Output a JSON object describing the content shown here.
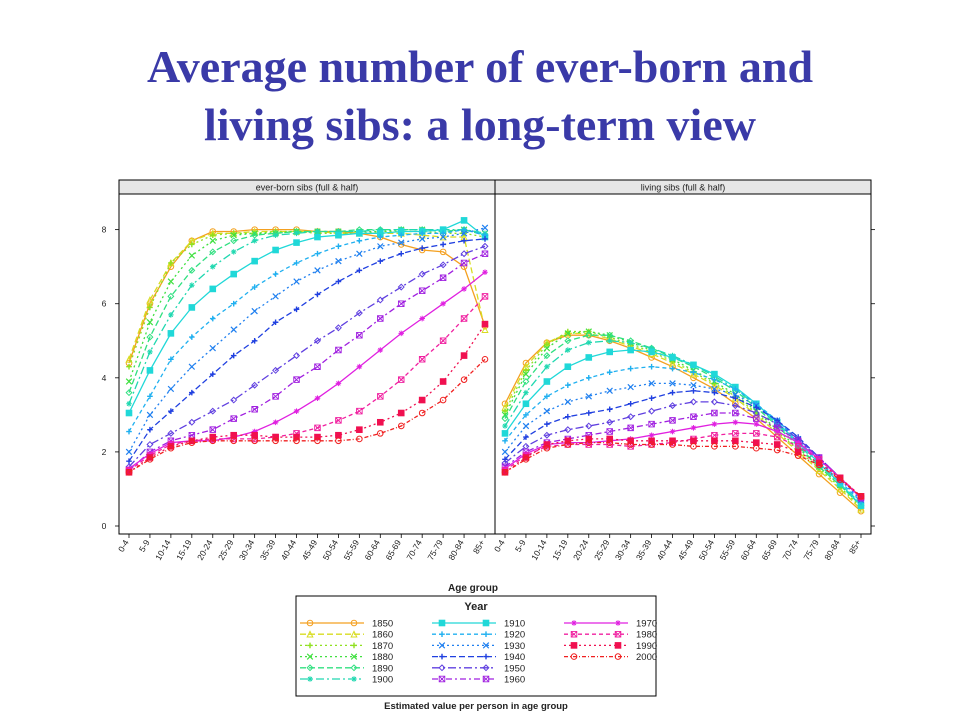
{
  "slide": {
    "title_line1": "Average number of ever-born and",
    "title_line2": "living sibs: a long-term view"
  },
  "chart_data": {
    "type": "line",
    "xlabel": "Age group",
    "caption": "Estimated value per person in age group",
    "legend_title": "Year",
    "categories": [
      "0-4",
      "5-9",
      "10-14",
      "15-19",
      "20-24",
      "25-29",
      "30-34",
      "35-39",
      "40-44",
      "45-49",
      "50-54",
      "55-59",
      "60-64",
      "65-69",
      "70-74",
      "75-79",
      "80-84",
      "85+"
    ],
    "ylim": [
      0,
      8.8
    ],
    "yticks": [
      0,
      2,
      4,
      6,
      8
    ],
    "grid": false,
    "legend_position": "bottom",
    "panels": [
      {
        "title": "ever-born sibs (full & half)",
        "series": [
          {
            "name": "1850",
            "color": "#f4a020",
            "values": [
              4.4,
              6.0,
              7.0,
              7.7,
              7.95,
              7.95,
              8.0,
              8.0,
              8.0,
              7.95,
              7.95,
              7.9,
              7.8,
              7.6,
              7.45,
              7.4,
              7.0,
              5.4
            ]
          },
          {
            "name": "1860",
            "color": "#d8dc20",
            "values": [
              4.5,
              6.1,
              7.1,
              7.7,
              7.9,
              7.9,
              7.95,
              7.95,
              7.95,
              7.95,
              7.9,
              7.9,
              7.9,
              7.9,
              7.85,
              7.8,
              7.8,
              5.3
            ]
          },
          {
            "name": "1870",
            "color": "#90e020",
            "values": [
              4.3,
              5.9,
              7.1,
              7.6,
              7.85,
              7.9,
              7.9,
              7.95,
              7.95,
              7.9,
              7.9,
              7.9,
              7.95,
              7.95,
              7.95,
              7.9,
              7.9,
              7.8
            ]
          },
          {
            "name": "1880",
            "color": "#40e040",
            "values": [
              3.9,
              5.5,
              6.6,
              7.3,
              7.7,
              7.85,
              7.9,
              7.9,
              7.95,
              7.95,
              7.95,
              7.95,
              7.95,
              8.0,
              8.0,
              7.95,
              8.0,
              7.9
            ]
          },
          {
            "name": "1890",
            "color": "#30e080",
            "values": [
              3.6,
              5.1,
              6.2,
              6.9,
              7.4,
              7.7,
              7.85,
              7.9,
              7.95,
              7.95,
              7.95,
              8.0,
              8.0,
              8.0,
              8.0,
              7.95,
              8.0,
              7.85
            ]
          },
          {
            "name": "1900",
            "color": "#20d8b0",
            "values": [
              3.3,
              4.7,
              5.7,
              6.5,
              7.0,
              7.4,
              7.7,
              7.85,
              7.9,
              7.95,
              7.95,
              7.95,
              8.0,
              8.0,
              8.0,
              8.0,
              8.0,
              7.9
            ]
          },
          {
            "name": "1910",
            "color": "#20d8d8",
            "values": [
              3.05,
              4.2,
              5.2,
              5.9,
              6.4,
              6.8,
              7.15,
              7.45,
              7.65,
              7.8,
              7.85,
              7.9,
              7.9,
              7.95,
              7.95,
              8.0,
              8.25,
              7.8
            ]
          },
          {
            "name": "1920",
            "color": "#20b0f0",
            "values": [
              2.55,
              3.5,
              4.5,
              5.1,
              5.6,
              6.0,
              6.45,
              6.8,
              7.1,
              7.35,
              7.55,
              7.7,
              7.8,
              7.85,
              7.9,
              7.9,
              8.0,
              7.85
            ]
          },
          {
            "name": "1930",
            "color": "#2080f0",
            "values": [
              2.0,
              3.0,
              3.7,
              4.3,
              4.8,
              5.3,
              5.8,
              6.2,
              6.6,
              6.9,
              7.15,
              7.35,
              7.55,
              7.65,
              7.75,
              7.8,
              7.9,
              8.05
            ]
          },
          {
            "name": "1940",
            "color": "#2040e0",
            "values": [
              1.75,
              2.6,
              3.1,
              3.6,
              4.1,
              4.6,
              5.0,
              5.5,
              5.85,
              6.25,
              6.6,
              6.9,
              7.15,
              7.35,
              7.5,
              7.6,
              7.7,
              7.75
            ]
          },
          {
            "name": "1950",
            "color": "#6040e0",
            "values": [
              1.6,
              2.2,
              2.5,
              2.8,
              3.1,
              3.4,
              3.8,
              4.2,
              4.6,
              5.0,
              5.35,
              5.75,
              6.1,
              6.45,
              6.8,
              7.05,
              7.35,
              7.55
            ]
          },
          {
            "name": "1960",
            "color": "#a020e0",
            "values": [
              1.5,
              2.0,
              2.3,
              2.45,
              2.6,
              2.9,
              3.15,
              3.5,
              3.95,
              4.3,
              4.75,
              5.15,
              5.6,
              6.0,
              6.35,
              6.7,
              7.1,
              7.35
            ]
          },
          {
            "name": "1970",
            "color": "#e020e0",
            "values": [
              1.55,
              1.95,
              2.25,
              2.3,
              2.3,
              2.4,
              2.55,
              2.8,
              3.1,
              3.45,
              3.85,
              4.3,
              4.75,
              5.2,
              5.6,
              6.0,
              6.4,
              6.85
            ]
          },
          {
            "name": "1980",
            "color": "#f020a0",
            "values": [
              1.5,
              1.9,
              2.2,
              2.3,
              2.35,
              2.35,
              2.35,
              2.4,
              2.5,
              2.65,
              2.85,
              3.1,
              3.5,
              3.95,
              4.5,
              5.0,
              5.6,
              6.2
            ]
          },
          {
            "name": "1990",
            "color": "#f01050",
            "values": [
              1.45,
              1.85,
              2.15,
              2.3,
              2.4,
              2.45,
              2.45,
              2.4,
              2.4,
              2.4,
              2.45,
              2.6,
              2.8,
              3.05,
              3.4,
              3.9,
              4.6,
              5.45
            ]
          },
          {
            "name": "2000",
            "color": "#f02020",
            "values": [
              1.45,
              1.8,
              2.1,
              2.25,
              2.3,
              2.3,
              2.3,
              2.3,
              2.3,
              2.3,
              2.3,
              2.35,
              2.5,
              2.7,
              3.05,
              3.4,
              3.95,
              4.5
            ]
          }
        ]
      },
      {
        "title": "living sibs (full & half)",
        "series": [
          {
            "name": "1850",
            "color": "#f4a020",
            "values": [
              3.3,
              4.4,
              4.95,
              5.15,
              5.15,
              5.0,
              4.8,
              4.55,
              4.3,
              4.0,
              3.7,
              3.3,
              2.9,
              2.4,
              1.9,
              1.4,
              0.9,
              0.4
            ]
          },
          {
            "name": "1860",
            "color": "#d8dc20",
            "values": [
              3.2,
              4.3,
              4.95,
              5.2,
              5.2,
              5.05,
              4.85,
              4.65,
              4.4,
              4.1,
              3.8,
              3.45,
              3.0,
              2.5,
              2.0,
              1.5,
              1.0,
              0.45
            ]
          },
          {
            "name": "1870",
            "color": "#90e020",
            "values": [
              3.1,
              4.2,
              4.9,
              5.25,
              5.25,
              5.1,
              4.9,
              4.7,
              4.45,
              4.15,
              3.85,
              3.5,
              3.05,
              2.55,
              2.05,
              1.55,
              1.05,
              0.5
            ]
          },
          {
            "name": "1880",
            "color": "#40e040",
            "values": [
              3.0,
              4.1,
              4.8,
              5.2,
              5.25,
              5.15,
              4.95,
              4.75,
              4.5,
              4.2,
              3.9,
              3.55,
              3.1,
              2.6,
              2.1,
              1.6,
              1.1,
              0.55
            ]
          },
          {
            "name": "1890",
            "color": "#30e080",
            "values": [
              2.9,
              3.9,
              4.6,
              5.0,
              5.15,
              5.15,
              5.0,
              4.8,
              4.55,
              4.3,
              4.0,
              3.65,
              3.2,
              2.7,
              2.15,
              1.6,
              1.1,
              0.55
            ]
          },
          {
            "name": "1900",
            "color": "#20d8b0",
            "values": [
              2.7,
              3.6,
              4.3,
              4.75,
              4.95,
              5.0,
              4.95,
              4.8,
              4.6,
              4.35,
              4.05,
              3.7,
              3.25,
              2.75,
              2.2,
              1.65,
              1.15,
              0.6
            ]
          },
          {
            "name": "1910",
            "color": "#20d8d8",
            "values": [
              2.5,
              3.3,
              3.9,
              4.3,
              4.55,
              4.7,
              4.75,
              4.7,
              4.55,
              4.35,
              4.1,
              3.75,
              3.3,
              2.8,
              2.25,
              1.7,
              1.15,
              0.55
            ]
          },
          {
            "name": "1920",
            "color": "#20b0f0",
            "values": [
              2.3,
              3.0,
              3.5,
              3.8,
              4.0,
              4.15,
              4.25,
              4.3,
              4.25,
              4.15,
              3.95,
              3.7,
              3.3,
              2.85,
              2.3,
              1.75,
              1.2,
              0.65
            ]
          },
          {
            "name": "1930",
            "color": "#2080f0",
            "values": [
              2.0,
              2.7,
              3.1,
              3.35,
              3.5,
              3.65,
              3.75,
              3.85,
              3.85,
              3.8,
              3.7,
              3.55,
              3.25,
              2.85,
              2.35,
              1.8,
              1.25,
              0.7
            ]
          },
          {
            "name": "1940",
            "color": "#2040e0",
            "values": [
              1.8,
              2.4,
              2.75,
              2.95,
              3.05,
              3.15,
              3.3,
              3.45,
              3.6,
              3.65,
              3.6,
              3.45,
              3.2,
              2.85,
              2.4,
              1.85,
              1.3,
              0.75
            ]
          },
          {
            "name": "1950",
            "color": "#6040e0",
            "values": [
              1.7,
              2.15,
              2.45,
              2.6,
              2.7,
              2.8,
              2.95,
              3.1,
              3.25,
              3.35,
              3.35,
              3.25,
              3.05,
              2.75,
              2.35,
              1.85,
              1.3,
              0.75
            ]
          },
          {
            "name": "1960",
            "color": "#a020e0",
            "values": [
              1.6,
              2.0,
              2.25,
              2.35,
              2.45,
              2.55,
              2.65,
              2.75,
              2.85,
              2.95,
              3.05,
              3.05,
              2.9,
              2.65,
              2.3,
              1.85,
              1.3,
              0.75
            ]
          },
          {
            "name": "1970",
            "color": "#e020e0",
            "values": [
              1.55,
              1.95,
              2.2,
              2.25,
              2.25,
              2.3,
              2.35,
              2.45,
              2.55,
              2.65,
              2.75,
              2.8,
              2.75,
              2.55,
              2.25,
              1.8,
              1.3,
              0.75
            ]
          },
          {
            "name": "1980",
            "color": "#f020a0",
            "values": [
              1.5,
              1.9,
              2.15,
              2.2,
              2.2,
              2.2,
              2.15,
              2.2,
              2.25,
              2.35,
              2.45,
              2.5,
              2.5,
              2.4,
              2.15,
              1.8,
              1.3,
              0.8
            ]
          },
          {
            "name": "1990",
            "color": "#f01050",
            "values": [
              1.45,
              1.85,
              2.2,
              2.3,
              2.35,
              2.35,
              2.3,
              2.3,
              2.3,
              2.3,
              2.3,
              2.3,
              2.25,
              2.2,
              2.0,
              1.7,
              1.3,
              0.8
            ]
          },
          {
            "name": "2000",
            "color": "#f02020",
            "values": [
              1.45,
              1.8,
              2.1,
              2.2,
              2.25,
              2.25,
              2.2,
              2.2,
              2.2,
              2.15,
              2.15,
              2.15,
              2.1,
              2.05,
              1.9,
              1.65,
              1.25,
              0.8
            ]
          }
        ]
      }
    ]
  }
}
